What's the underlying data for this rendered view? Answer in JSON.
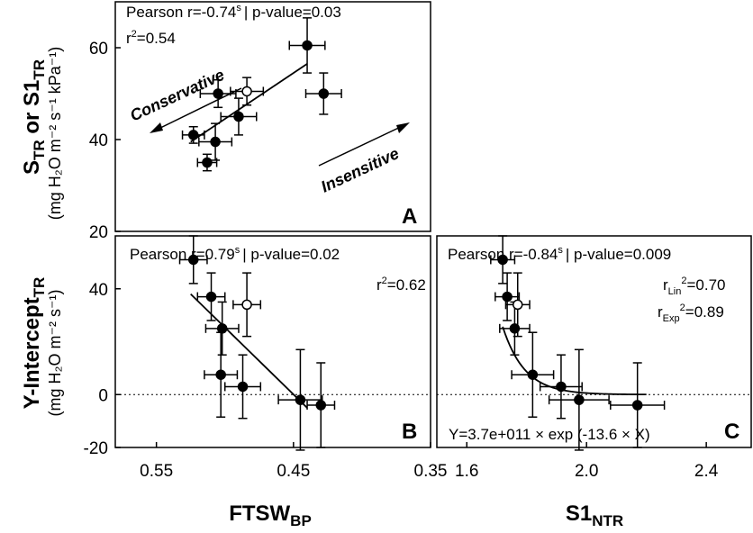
{
  "chart_data": [
    {
      "panel": "A",
      "type": "scatter",
      "annotation_top": "Pearson r=-0.74",
      "annotation_sup": "s",
      "annotation_p": "| p-value=0.03",
      "r2_label": "r",
      "r2_value": "=0.54",
      "ylabel_main": "S",
      "ylabel_main_sub": "TR",
      "ylabel_main_mid": " or S1",
      "ylabel_main_sub2": "TR",
      "ylabel_units": "(mg H₂O m⁻² s⁻¹ kPa⁻¹)",
      "ylim": [
        20,
        70
      ],
      "yticks": [
        20,
        40,
        60
      ],
      "xlim": [
        0.58,
        0.35
      ],
      "arrow_left_label": "Conservative",
      "arrow_right_label": "Insensitive",
      "points": [
        {
          "x": 0.523,
          "y": 41,
          "xerr": 0.008,
          "yerr": 1.8,
          "open": false
        },
        {
          "x": 0.513,
          "y": 35,
          "xerr": 0.007,
          "yerr": 1.8,
          "open": false
        },
        {
          "x": 0.507,
          "y": 39.5,
          "xerr": 0.012,
          "yerr": 4,
          "open": false
        },
        {
          "x": 0.505,
          "y": 50,
          "xerr": 0.013,
          "yerr": 3,
          "open": false
        },
        {
          "x": 0.484,
          "y": 50.5,
          "xerr": 0.012,
          "yerr": 3,
          "open": true
        },
        {
          "x": 0.49,
          "y": 45,
          "xerr": 0.013,
          "yerr": 4,
          "open": false
        },
        {
          "x": 0.44,
          "y": 60.5,
          "xerr": 0.013,
          "yerr": 6,
          "open": false
        },
        {
          "x": 0.428,
          "y": 50,
          "xerr": 0.013,
          "yerr": 4.5,
          "open": false
        }
      ],
      "fit_line": [
        [
          0.525,
          39.5
        ],
        [
          0.44,
          56.5
        ]
      ],
      "panel_letter": "A"
    },
    {
      "panel": "B",
      "type": "scatter",
      "annotation_top": "Pearson r=0.79",
      "annotation_sup": "s",
      "annotation_p": "| p-value=0.02",
      "r2_label": "r",
      "r2_value": "=0.62",
      "ylabel_main": "Y-Intercept",
      "ylabel_main_sub": "TR",
      "ylabel_units": "(mg H₂O m⁻² s⁻¹)",
      "ylim": [
        -20,
        60
      ],
      "yticks": [
        -20,
        0,
        40
      ],
      "xlim": [
        0.58,
        0.35
      ],
      "xticks": [
        "0.55",
        "0.45",
        "0.35"
      ],
      "xtick_values": [
        0.55,
        0.45,
        0.35
      ],
      "xlabel": "FTSW",
      "xlabel_sub": "BP",
      "points": [
        {
          "x": 0.523,
          "y": 51,
          "xerr": 0.01,
          "yerr": 9,
          "open": false
        },
        {
          "x": 0.51,
          "y": 37,
          "xerr": 0.01,
          "yerr": 9,
          "open": false
        },
        {
          "x": 0.502,
          "y": 25,
          "xerr": 0.012,
          "yerr": 10,
          "open": false
        },
        {
          "x": 0.503,
          "y": 7.5,
          "xerr": 0.012,
          "yerr": 16,
          "open": false
        },
        {
          "x": 0.484,
          "y": 34,
          "xerr": 0.01,
          "yerr": 12,
          "open": true
        },
        {
          "x": 0.487,
          "y": 3,
          "xerr": 0.013,
          "yerr": 12,
          "open": false
        },
        {
          "x": 0.445,
          "y": -2,
          "xerr": 0.016,
          "yerr": 19,
          "open": false
        },
        {
          "x": 0.43,
          "y": -4,
          "xerr": 0.01,
          "yerr": 16,
          "open": false
        }
      ],
      "fit_line": [
        [
          0.525,
          38
        ],
        [
          0.44,
          -5
        ]
      ],
      "zero_line": 0,
      "panel_letter": "B"
    },
    {
      "panel": "C",
      "type": "scatter",
      "annotation_top": "Pearson r=-0.84",
      "annotation_sup": "s",
      "annotation_p": "| p-value=0.009",
      "rlin_label": "r",
      "rlin_sub": "Lin",
      "rlin_value": "=0.70",
      "rexp_label": "r",
      "rexp_sub": "Exp",
      "rexp_value": "=0.89",
      "ylim": [
        -20,
        60
      ],
      "xlim": [
        1.5,
        2.55
      ],
      "xticks": [
        "1.6",
        "2.0",
        "2.4"
      ],
      "xtick_values": [
        1.6,
        2.0,
        2.4
      ],
      "xlabel": "S1",
      "xlabel_sub": "NTR",
      "equation": "Y=3.7e+011 × exp (-13.6 × X)",
      "points": [
        {
          "x": 1.72,
          "y": 51,
          "xerr": 0.04,
          "yerr": 9,
          "open": false
        },
        {
          "x": 1.735,
          "y": 37,
          "xerr": 0.04,
          "yerr": 9,
          "open": false
        },
        {
          "x": 1.76,
          "y": 25,
          "xerr": 0.05,
          "yerr": 10,
          "open": false
        },
        {
          "x": 1.82,
          "y": 7.5,
          "xerr": 0.07,
          "yerr": 16,
          "open": false
        },
        {
          "x": 1.77,
          "y": 34,
          "xerr": 0.04,
          "yerr": 12,
          "open": true
        },
        {
          "x": 1.915,
          "y": 3,
          "xerr": 0.07,
          "yerr": 12,
          "open": false
        },
        {
          "x": 1.975,
          "y": -2,
          "xerr": 0.1,
          "yerr": 19,
          "open": false
        },
        {
          "x": 2.17,
          "y": -4,
          "xerr": 0.09,
          "yerr": 16,
          "open": false
        }
      ],
      "exp_a": 370000000000.0,
      "exp_b": -13.6,
      "fit_range": [
        1.72,
        2.2
      ],
      "zero_line": 0,
      "panel_letter": "C"
    }
  ]
}
